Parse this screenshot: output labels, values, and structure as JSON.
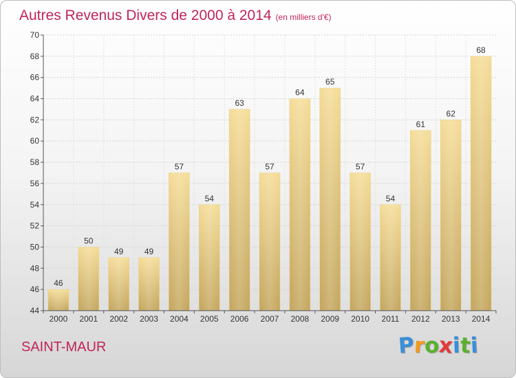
{
  "header": {
    "title": "Autres Revenus Divers de 2000 à 2014",
    "unit": "(en milliers d'€)"
  },
  "footer": {
    "place": "SAINT-MAUR",
    "brand_letters": [
      "P",
      "r",
      "o",
      "x",
      "i",
      "t",
      "i"
    ],
    "brand_colors": [
      "#3a8fd8",
      "#f29a1f",
      "#5cb030",
      "#e23a3a",
      "#3a8fd8",
      "#5cb030",
      "#3a8fd8"
    ]
  },
  "chart_data": {
    "type": "bar",
    "title": "Autres Revenus Divers de 2000 à 2014",
    "subtitle": "(en milliers d'€)",
    "xlabel": "",
    "ylabel": "",
    "categories": [
      "2000",
      "2001",
      "2002",
      "2003",
      "2004",
      "2005",
      "2006",
      "2007",
      "2008",
      "2009",
      "2010",
      "2011",
      "2012",
      "2013",
      "2014"
    ],
    "values": [
      46,
      50,
      49,
      49,
      57,
      54,
      63,
      57,
      64,
      65,
      57,
      54,
      61,
      62,
      68
    ],
    "ylim": [
      44,
      70
    ],
    "yticks": [
      44,
      46,
      48,
      50,
      52,
      54,
      56,
      58,
      60,
      62,
      64,
      66,
      68,
      70
    ],
    "grid": true,
    "bar_color_top": "#f5dc96",
    "bar_color_bottom": "#c3a55c"
  }
}
